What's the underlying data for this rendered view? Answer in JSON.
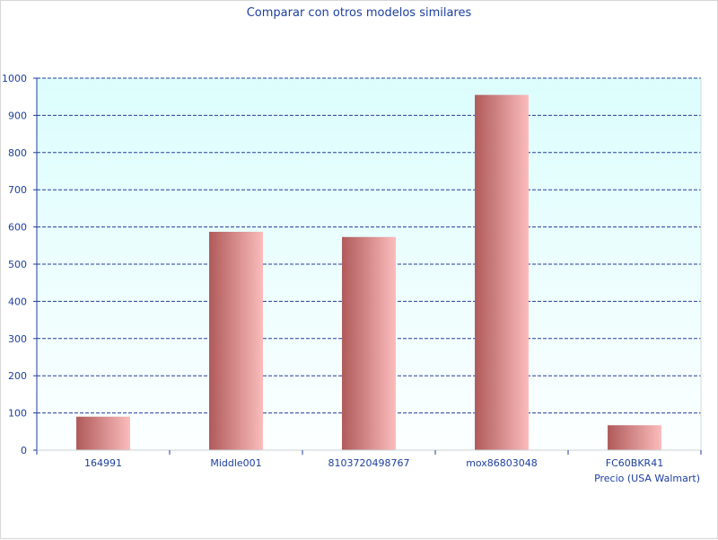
{
  "chart_data": {
    "type": "bar",
    "title": "Comparar con otros modelos similares",
    "xlabel": "Precio (USA Walmart)",
    "ylabel": "",
    "categories": [
      "164991",
      "Middle001",
      "8103720498767",
      "mox86803048",
      "FC60BKR41"
    ],
    "values": [
      90,
      587,
      573,
      955,
      67
    ],
    "ylim": [
      0,
      1000
    ],
    "yticks": [
      0,
      100,
      200,
      300,
      400,
      500,
      600,
      700,
      800,
      900,
      1000
    ],
    "grid": true,
    "legend": "none",
    "colors": {
      "bar_dark": "#b05a5a",
      "bar_light": "#fbbcbc",
      "plot_top": "#dcfdfd",
      "plot_bottom": "#fcffff",
      "grid": "#233f9a",
      "axis": "#1c3f9e",
      "text": "#1c3f9e"
    }
  }
}
